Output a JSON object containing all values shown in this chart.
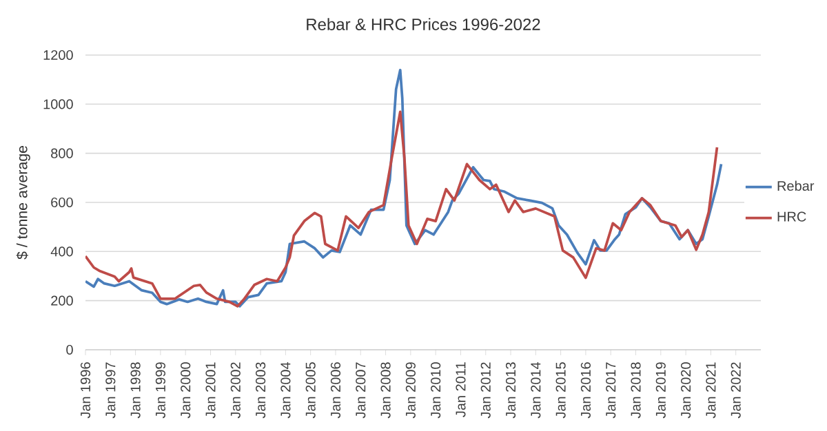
{
  "chart_data": {
    "type": "line",
    "title": "Rebar & HRC  Prices 1996-2022",
    "ylabel": "$ / tonne average",
    "xlim": [
      "1996-01",
      "2023-01"
    ],
    "ylim": [
      0,
      1200
    ],
    "yticks": [
      0,
      200,
      400,
      600,
      800,
      1000,
      1200
    ],
    "xticks": [
      {
        "value": "1996-01",
        "label": "Jan 1996"
      },
      {
        "value": "1997-01",
        "label": "Jan 1997"
      },
      {
        "value": "1998-01",
        "label": "Jan 1998"
      },
      {
        "value": "1999-01",
        "label": "Jan 1999"
      },
      {
        "value": "2000-01",
        "label": "Jan 2000"
      },
      {
        "value": "2001-01",
        "label": "Jan 2001"
      },
      {
        "value": "2002-01",
        "label": "Jan 2002"
      },
      {
        "value": "2003-01",
        "label": "Jan 2003"
      },
      {
        "value": "2004-01",
        "label": "Jan 2004"
      },
      {
        "value": "2005-01",
        "label": "Jan 2005"
      },
      {
        "value": "2006-01",
        "label": "Jan 2006"
      },
      {
        "value": "2007-01",
        "label": "Jan 2007"
      },
      {
        "value": "2008-01",
        "label": "Jan 2008"
      },
      {
        "value": "2009-01",
        "label": "Jan 2009"
      },
      {
        "value": "2010-01",
        "label": "Jan 2010"
      },
      {
        "value": "2011-01",
        "label": "Jan 2011"
      },
      {
        "value": "2012-01",
        "label": "Jan 2012"
      },
      {
        "value": "2013-01",
        "label": "Jan 2013"
      },
      {
        "value": "2014-01",
        "label": "Jan 2014"
      },
      {
        "value": "2015-01",
        "label": "Jan 2015"
      },
      {
        "value": "2016-01",
        "label": "Jan 2016"
      },
      {
        "value": "2017-01",
        "label": "Jan 2017"
      },
      {
        "value": "2018-01",
        "label": "Jan 2018"
      },
      {
        "value": "2019-01",
        "label": "Jan 2019"
      },
      {
        "value": "2020-01",
        "label": "Jan 2020"
      },
      {
        "value": "2021-01",
        "label": "Jan 2021"
      },
      {
        "value": "2022-01",
        "label": "Jan 2022"
      }
    ],
    "grid": "y",
    "legend": "right",
    "marker": "none",
    "line_style": "solid",
    "series": [
      {
        "name": "Rebar",
        "color": "#4a7ebb",
        "x": [
          "1996-01",
          "1996-05",
          "1996-07",
          "1996-10",
          "1997-03",
          "1997-10",
          "1998-04",
          "1998-09",
          "1999-01",
          "1999-04",
          "1999-10",
          "2000-02",
          "2000-07",
          "2000-11",
          "2001-04",
          "2001-07",
          "2001-08",
          "2002-01",
          "2002-03",
          "2002-07",
          "2002-12",
          "2003-04",
          "2003-11",
          "2004-01",
          "2004-03",
          "2004-10",
          "2005-03",
          "2005-07",
          "2005-11",
          "2006-03",
          "2006-08",
          "2007-01",
          "2007-06",
          "2007-12",
          "2008-03",
          "2008-06",
          "2008-08",
          "2008-09",
          "2008-11",
          "2009-03",
          "2009-08",
          "2009-12",
          "2010-07",
          "2010-09",
          "2010-12",
          "2011-07",
          "2011-12",
          "2012-03",
          "2012-05",
          "2012-10",
          "2013-04",
          "2013-10",
          "2014-04",
          "2014-09",
          "2014-12",
          "2015-04",
          "2015-09",
          "2016-01",
          "2016-05",
          "2016-08",
          "2016-11",
          "2017-03",
          "2017-05",
          "2017-08",
          "2018-01",
          "2018-04",
          "2018-08",
          "2019-01",
          "2019-05",
          "2019-10",
          "2020-02",
          "2020-06",
          "2020-09",
          "2020-12",
          "2021-04",
          "2021-06"
        ],
        "values": [
          279,
          257,
          288,
          270,
          260,
          279,
          242,
          232,
          195,
          186,
          205,
          195,
          208,
          195,
          186,
          242,
          195,
          195,
          177,
          214,
          223,
          270,
          279,
          316,
          431,
          441,
          413,
          376,
          404,
          398,
          506,
          469,
          570,
          570,
          691,
          1061,
          1139,
          1024,
          506,
          431,
          487,
          469,
          561,
          608,
          635,
          743,
          691,
          687,
          654,
          644,
          617,
          608,
          598,
          576,
          506,
          469,
          395,
          348,
          446,
          404,
          404,
          450,
          469,
          552,
          580,
          617,
          580,
          524,
          515,
          450,
          487,
          431,
          450,
          543,
          672,
          756
        ]
      },
      {
        "name": "HRC",
        "color": "#be4b48",
        "x": [
          "1996-01",
          "1996-05",
          "1996-08",
          "1997-03",
          "1997-05",
          "1997-10",
          "1997-11",
          "1997-12",
          "1998-09",
          "1999-01",
          "1999-08",
          "2000-05",
          "2000-08",
          "2000-11",
          "2001-04",
          "2001-10",
          "2002-02",
          "2002-05",
          "2002-10",
          "2003-04",
          "2003-09",
          "2004-01",
          "2004-03",
          "2004-05",
          "2004-10",
          "2005-03",
          "2005-06",
          "2005-08",
          "2006-02",
          "2006-06",
          "2006-12",
          "2007-05",
          "2007-12",
          "2008-04",
          "2008-08",
          "2008-10",
          "2008-12",
          "2009-04",
          "2009-09",
          "2010-01",
          "2010-06",
          "2010-10",
          "2011-04",
          "2011-10",
          "2012-03",
          "2012-06",
          "2012-12",
          "2013-03",
          "2013-07",
          "2014-01",
          "2014-10",
          "2015-02",
          "2015-07",
          "2016-01",
          "2016-06",
          "2016-10",
          "2017-02",
          "2017-06",
          "2017-10",
          "2018-04",
          "2018-08",
          "2019-01",
          "2019-08",
          "2019-11",
          "2020-02",
          "2020-06",
          "2020-09",
          "2020-12",
          "2021-04"
        ],
        "values": [
          381,
          335,
          320,
          298,
          279,
          316,
          331,
          294,
          270,
          208,
          208,
          260,
          264,
          233,
          208,
          195,
          177,
          205,
          264,
          288,
          279,
          335,
          376,
          465,
          524,
          557,
          543,
          431,
          404,
          543,
          496,
          561,
          589,
          783,
          969,
          783,
          506,
          431,
          533,
          524,
          654,
          608,
          756,
          691,
          654,
          672,
          561,
          608,
          561,
          575,
          543,
          404,
          376,
          293,
          413,
          404,
          515,
          487,
          561,
          617,
          589,
          524,
          506,
          459,
          487,
          407,
          469,
          561,
          824
        ]
      }
    ]
  }
}
